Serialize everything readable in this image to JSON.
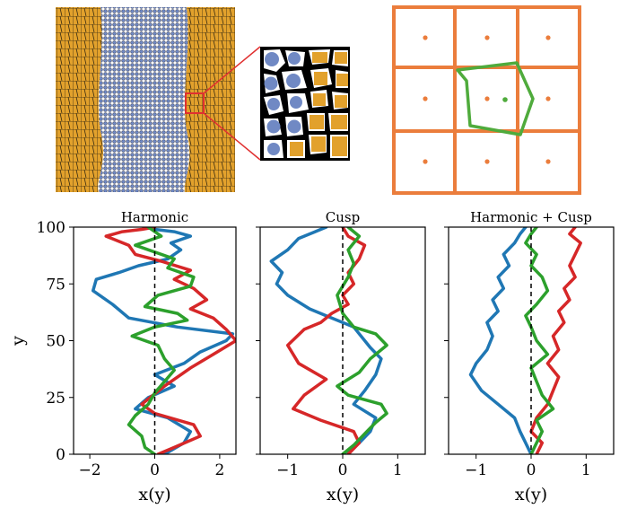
{
  "colors": {
    "blue_grain": "#7089c4",
    "orange_grain": "#e2a12c",
    "grid_orange": "#eb7d3c",
    "green_cell": "#4fab3c",
    "inset_red": "#e03030",
    "series_blue": "#1f77b4",
    "series_red": "#d62728",
    "series_green": "#2ca02c"
  },
  "chart_data": [
    {
      "type": "line",
      "title": "Harmonic",
      "xlabel": "x(y)",
      "ylabel": "y",
      "xlim": [
        -2.5,
        2.5
      ],
      "ylim": [
        0,
        100
      ],
      "xticks": [
        -2,
        0,
        2
      ],
      "xtick_labels": [
        "−2",
        "0",
        "2"
      ],
      "yticks": [
        0,
        25,
        50,
        75,
        100
      ],
      "ytick_labels": [
        "0",
        "25",
        "50",
        "75",
        "100"
      ],
      "reference_line_x": 0,
      "series": [
        {
          "color": "blue",
          "x": [
            0.3,
            0.9,
            1.1,
            0.4,
            -0.6,
            -0.2,
            0.6,
            0.0,
            0.9,
            1.4,
            2.2,
            2.4,
            0.7,
            -0.8,
            -1.3,
            -1.9,
            -1.8,
            -1.1,
            -0.5,
            0.4,
            0.8,
            0.5,
            1.1,
            0.6,
            0.0,
            -0.3
          ],
          "y": [
            0,
            5,
            10,
            16,
            20,
            25,
            30,
            35,
            40,
            45,
            50,
            53,
            56,
            60,
            66,
            72,
            77,
            80,
            83,
            86,
            90,
            93,
            96,
            98,
            99,
            100
          ]
        },
        {
          "color": "red",
          "x": [
            0.1,
            0.6,
            1.4,
            1.2,
            0.0,
            -0.4,
            0.3,
            1.1,
            1.8,
            2.5,
            2.2,
            1.8,
            1.1,
            1.6,
            1.2,
            0.6,
            1.1,
            0.2,
            -0.6,
            -0.8,
            -1.5,
            -1.0,
            -0.4,
            0.0
          ],
          "y": [
            0,
            3,
            8,
            13,
            18,
            22,
            30,
            38,
            44,
            50,
            55,
            60,
            64,
            68,
            73,
            77,
            81,
            85,
            88,
            92,
            96,
            98,
            99,
            100
          ]
        },
        {
          "color": "green",
          "x": [
            0.0,
            -0.3,
            -0.4,
            -0.8,
            -0.6,
            -0.2,
            0.0,
            0.3,
            0.6,
            0.3,
            0.1,
            -0.7,
            0.0,
            1.0,
            0.7,
            -0.3,
            0.1,
            1.1,
            1.2,
            0.4,
            0.6,
            -0.6,
            0.2,
            -0.2
          ],
          "y": [
            0,
            3,
            8,
            13,
            17,
            22,
            27,
            32,
            37,
            42,
            48,
            52,
            56,
            59,
            62,
            65,
            70,
            74,
            78,
            82,
            86,
            92,
            96,
            100
          ]
        }
      ]
    },
    {
      "type": "line",
      "title": "Cusp",
      "xlabel": "x(y)",
      "xlim": [
        -1.5,
        1.5
      ],
      "ylim": [
        0,
        100
      ],
      "xticks": [
        -1,
        0,
        1
      ],
      "xtick_labels": [
        "−1",
        "0",
        "1"
      ],
      "yticks": [
        0,
        25,
        50,
        75,
        100
      ],
      "reference_line_x": 0,
      "series": [
        {
          "color": "blue",
          "x": [
            0.0,
            0.3,
            0.5,
            0.6,
            0.2,
            0.4,
            0.6,
            0.7,
            0.5,
            0.2,
            -0.3,
            -0.6,
            -1.0,
            -1.2,
            -1.1,
            -1.3,
            -1.0,
            -0.8,
            -0.5,
            -0.3
          ],
          "y": [
            0,
            5,
            10,
            16,
            22,
            28,
            35,
            42,
            47,
            56,
            61,
            64,
            70,
            75,
            80,
            85,
            90,
            95,
            98,
            100
          ]
        },
        {
          "color": "red",
          "x": [
            0.1,
            0.3,
            0.2,
            -0.4,
            -0.9,
            -0.7,
            -0.3,
            -0.8,
            -1.0,
            -0.7,
            -0.4,
            -0.2,
            0.1,
            0.0,
            0.2,
            0.1,
            0.3,
            0.4,
            0.1,
            0.0
          ],
          "y": [
            0,
            5,
            10,
            15,
            20,
            26,
            33,
            40,
            48,
            55,
            58,
            62,
            66,
            70,
            75,
            80,
            86,
            92,
            96,
            100
          ]
        },
        {
          "color": "green",
          "x": [
            0.0,
            0.2,
            0.4,
            0.6,
            0.8,
            0.7,
            0.1,
            -0.1,
            0.3,
            0.5,
            0.8,
            0.6,
            0.2,
            0.0,
            -0.1,
            0.1,
            0.2,
            0.1,
            0.3,
            0.1
          ],
          "y": [
            0,
            4,
            9,
            14,
            18,
            22,
            26,
            30,
            36,
            42,
            48,
            53,
            56,
            62,
            70,
            78,
            84,
            90,
            96,
            100
          ]
        }
      ]
    },
    {
      "type": "line",
      "title": "Harmonic + Cusp",
      "xlabel": "x(y)",
      "xlim": [
        -1.5,
        1.5
      ],
      "ylim": [
        0,
        100
      ],
      "xticks": [
        -1,
        0,
        1
      ],
      "xtick_labels": [
        "−1",
        "0",
        "1"
      ],
      "yticks": [
        0,
        25,
        50,
        75,
        100
      ],
      "reference_line_x": 0,
      "series": [
        {
          "color": "blue",
          "x": [
            0.0,
            -0.1,
            -0.2,
            -0.3,
            -0.6,
            -0.9,
            -1.1,
            -1.0,
            -0.8,
            -0.7,
            -0.8,
            -0.6,
            -0.7,
            -0.5,
            -0.6,
            -0.4,
            -0.5,
            -0.3,
            -0.2,
            -0.1
          ],
          "y": [
            0,
            5,
            10,
            16,
            22,
            28,
            35,
            40,
            46,
            52,
            58,
            63,
            68,
            73,
            78,
            83,
            88,
            93,
            97,
            100
          ]
        },
        {
          "color": "red",
          "x": [
            0.1,
            0.2,
            0.0,
            0.1,
            0.3,
            0.4,
            0.5,
            0.3,
            0.5,
            0.4,
            0.6,
            0.5,
            0.7,
            0.6,
            0.8,
            0.7,
            0.8,
            0.9,
            0.7,
            0.8
          ],
          "y": [
            0,
            5,
            10,
            16,
            22,
            28,
            34,
            40,
            46,
            52,
            58,
            63,
            68,
            73,
            78,
            83,
            88,
            93,
            97,
            100
          ]
        },
        {
          "color": "green",
          "x": [
            0.0,
            0.1,
            0.2,
            0.1,
            0.4,
            0.2,
            0.1,
            0.0,
            0.3,
            0.1,
            0.0,
            -0.1,
            0.1,
            0.3,
            0.2,
            0.0,
            0.1,
            -0.1,
            0.0,
            0.1
          ],
          "y": [
            0,
            5,
            10,
            15,
            20,
            26,
            32,
            38,
            44,
            50,
            56,
            61,
            66,
            72,
            78,
            83,
            88,
            93,
            97,
            100
          ]
        }
      ]
    }
  ]
}
